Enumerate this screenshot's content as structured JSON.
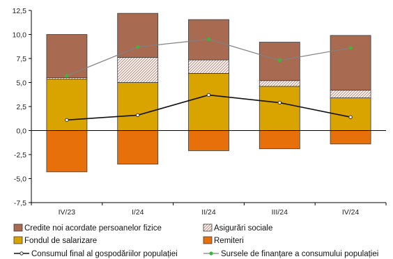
{
  "chart_data": {
    "type": "bar",
    "subtype": "stacked-bar-with-lines",
    "categories": [
      "IV/23",
      "I/24",
      "II/24",
      "III/24",
      "IV/24"
    ],
    "ylim": [
      -7.5,
      12.5
    ],
    "yticks": [
      -7.5,
      -5.0,
      -2.5,
      0.0,
      2.5,
      5.0,
      7.5,
      10.0,
      12.5
    ],
    "ytick_labels": [
      "-7,5",
      "-5,0",
      "-2,5",
      "0,0",
      "2,5",
      "5,0",
      "7,5",
      "10,0",
      "12,5"
    ],
    "series": [
      {
        "name": "Fondul de salarizare",
        "kind": "bar",
        "values": [
          5.35,
          5.0,
          5.95,
          4.6,
          3.4
        ],
        "color": "#D9A300"
      },
      {
        "name": "Asigurări sociale",
        "kind": "bar-hatched",
        "values": [
          0.15,
          2.6,
          1.4,
          0.6,
          0.8
        ],
        "color": "#C8866F"
      },
      {
        "name": "Credite noi acordate persoanelor fizice",
        "kind": "bar",
        "values": [
          4.5,
          4.6,
          4.2,
          4.0,
          5.7
        ],
        "color": "#A86B52"
      },
      {
        "name": "Remiteri",
        "kind": "bar",
        "values": [
          -4.3,
          -3.5,
          -2.1,
          -1.9,
          -1.4
        ],
        "color": "#E8700A"
      },
      {
        "name": "Consumul final al gospodăriilor populației",
        "kind": "line",
        "values": [
          1.1,
          1.6,
          3.7,
          2.9,
          1.4
        ],
        "color": "#111111"
      },
      {
        "name": "Sursele de finanțare a consumului populației",
        "kind": "line",
        "values": [
          5.7,
          8.7,
          9.5,
          7.3,
          8.6
        ],
        "color": "#808080",
        "marker_color": "#3DB53D"
      }
    ],
    "legend": {
      "placement": "bottom",
      "entries": [
        "Credite noi acordate persoanelor fizice",
        "Asigurări sociale",
        "Fondul de salarizare",
        "Remiteri",
        "Consumul final al gospodăriilor populației",
        "Sursele de finanțare a consumului populației"
      ]
    }
  }
}
